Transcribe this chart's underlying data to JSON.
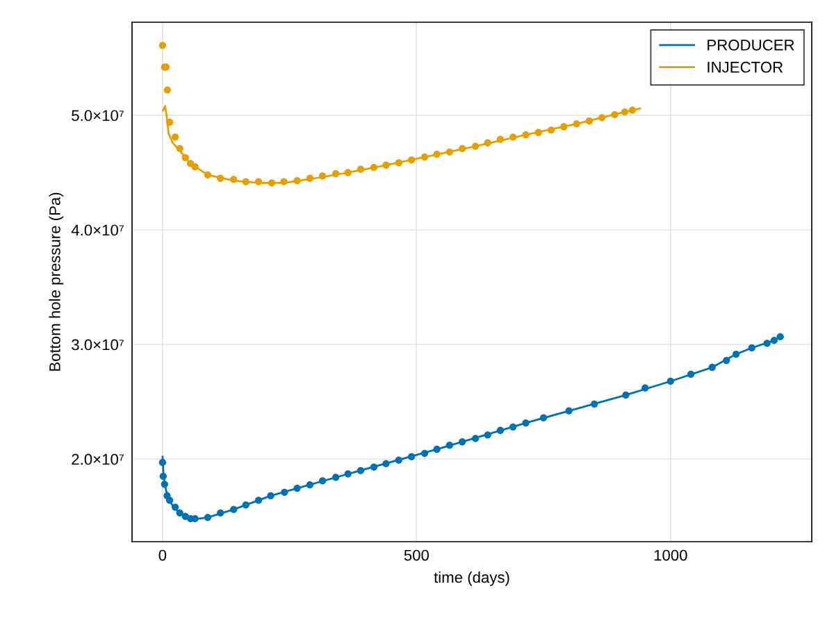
{
  "chart_data": {
    "type": "line",
    "xlabel": "time (days)",
    "ylabel": "Bottom hole pressure (Pa)",
    "xlim": [
      -60,
      1278
    ],
    "xticks": [
      0,
      500,
      1000
    ],
    "ylim": [
      12790000.0,
      58120000.0
    ],
    "yticks": [
      {
        "value": 20000000.0,
        "label": "2.0×10⁷"
      },
      {
        "value": 30000000.0,
        "label": "3.0×10⁷"
      },
      {
        "value": 40000000.0,
        "label": "4.0×10⁷"
      },
      {
        "value": 50000000.0,
        "label": "5.0×10⁷"
      }
    ],
    "grid": true,
    "legend": "top right",
    "series": [
      {
        "name": "PRODUCER",
        "color": "#0072b2",
        "x": [
          0,
          2,
          5,
          10,
          20,
          34,
          55,
          64,
          89,
          140,
          213,
          365,
          544,
          715,
          912,
          1000,
          1082,
          1129,
          1160,
          1204,
          1216
        ],
        "values": [
          20200000.0,
          18600000.0,
          17700000.0,
          16700000.0,
          15900000.0,
          15300000.0,
          14800000.0,
          14750000.0,
          14900000.0,
          15600000.0,
          16800000.0,
          18700000.0,
          20900000.0,
          23150000.0,
          25580000.0,
          26790000.0,
          28000000.0,
          29150000.0,
          29700000.0,
          30360000.0,
          30670000.0
        ]
      },
      {
        "type": "scatter",
        "marker": "circle",
        "color": "#0072b2",
        "x": [
          0,
          1.3,
          4,
          9,
          14,
          25,
          34,
          45,
          55,
          64,
          89,
          114,
          140,
          164,
          189,
          213,
          240,
          265,
          290,
          315,
          341,
          365,
          390,
          416,
          440,
          465,
          490,
          516,
          540,
          565,
          590,
          616,
          640,
          665,
          690,
          715,
          750,
          800,
          850,
          912,
          950,
          1000,
          1040,
          1082,
          1110,
          1129,
          1160,
          1190,
          1204,
          1216
        ],
        "values": [
          19700000.0,
          18500000.0,
          17800000.0,
          16800000.0,
          16400000.0,
          15800000.0,
          15300000.0,
          15000000.0,
          14800000.0,
          14800000.0,
          14900000.0,
          15300000.0,
          15600000.0,
          16000000.0,
          16400000.0,
          16800000.0,
          17100000.0,
          17450000.0,
          17750000.0,
          18100000.0,
          18400000.0,
          18700000.0,
          19000000.0,
          19300000.0,
          19600000.0,
          19900000.0,
          20200000.0,
          20500000.0,
          20850000.0,
          21200000.0,
          21500000.0,
          21800000.0,
          22100000.0,
          22500000.0,
          22800000.0,
          23150000.0,
          23600000.0,
          24200000.0,
          24800000.0,
          25580000.0,
          26200000.0,
          26790000.0,
          27400000.0,
          28000000.0,
          28600000.0,
          29150000.0,
          29700000.0,
          30100000.0,
          30360000.0,
          30670000.0
        ]
      },
      {
        "name": "INJECTOR",
        "color": "#e69f00",
        "x": [
          1,
          5,
          8,
          12,
          20,
          34,
          55,
          89,
          140,
          189,
          240,
          300,
          365,
          440,
          516,
          616,
          715,
          815,
          910,
          940
        ],
        "values": [
          50400000.0,
          50800000.0,
          50000000.0,
          48400000.0,
          47600000.0,
          46900000.0,
          45800000.0,
          44800000.0,
          44300000.0,
          44100000.0,
          44100000.0,
          44500000.0,
          45000000.0,
          45650000.0,
          46350000.0,
          47300000.0,
          48300000.0,
          49250000.0,
          50300000.0,
          50600000.0
        ]
      },
      {
        "type": "scatter",
        "marker": "circle",
        "color": "#e69f00",
        "x": [
          0,
          4,
          7,
          9.6,
          14,
          25,
          34,
          45,
          55,
          64,
          89,
          114,
          140,
          164,
          189,
          215,
          239,
          265,
          290,
          315,
          341,
          365,
          390,
          416,
          440,
          465,
          490,
          516,
          540,
          565,
          590,
          616,
          640,
          665,
          690,
          715,
          740,
          765,
          790,
          815,
          840,
          865,
          890,
          910,
          925
        ],
        "values": [
          56100000.0,
          54200000.0,
          54200000.0,
          52200000.0,
          49400000.0,
          48100000.0,
          47100000.0,
          46300000.0,
          45800000.0,
          45500000.0,
          44800000.0,
          44500000.0,
          44400000.0,
          44200000.0,
          44200000.0,
          44100000.0,
          44200000.0,
          44300000.0,
          44500000.0,
          44700000.0,
          44900000.0,
          45000000.0,
          45300000.0,
          45450000.0,
          45650000.0,
          45850000.0,
          46100000.0,
          46350000.0,
          46600000.0,
          46800000.0,
          47100000.0,
          47300000.0,
          47600000.0,
          47900000.0,
          48100000.0,
          48300000.0,
          48500000.0,
          48700000.0,
          49000000.0,
          49250000.0,
          49500000.0,
          49800000.0,
          50050000.0,
          50300000.0,
          50450000.0
        ]
      }
    ]
  }
}
